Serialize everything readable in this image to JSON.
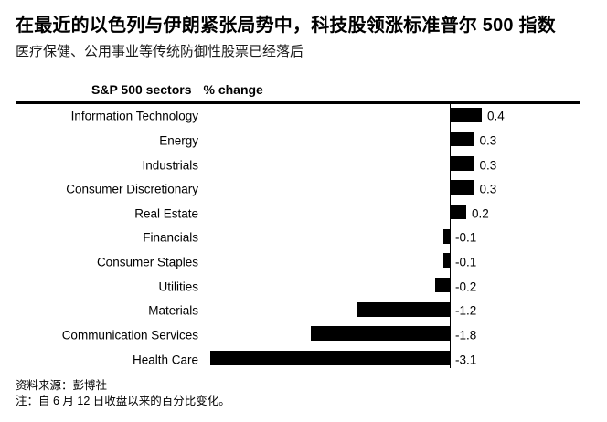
{
  "header": {
    "title": "在最近的以色列与伊朗紧张局势中，科技股领涨标准普尔 500 指数",
    "subtitle": "医疗保健、公用事业等传统防御性股票已经落后"
  },
  "chart_header": {
    "sectors_label": "S&P 500 sectors",
    "change_label": "% change"
  },
  "chart_data": {
    "type": "bar",
    "orientation": "horizontal",
    "title": "S&P 500 sectors % change",
    "xlabel": "% change",
    "ylabel": "S&P 500 sectors",
    "categories": [
      "Information Technology",
      "Energy",
      "Industrials",
      "Consumer Discretionary",
      "Real Estate",
      "Financials",
      "Consumer Staples",
      "Utilities",
      "Materials",
      "Communication Services",
      "Health Care"
    ],
    "values": [
      0.4,
      0.3,
      0.3,
      0.3,
      0.2,
      -0.1,
      -0.1,
      -0.2,
      -1.2,
      -1.8,
      -3.1
    ],
    "value_labels": [
      "0.4",
      "0.3",
      "0.3",
      "0.3",
      "0.2",
      "-0.1",
      "-0.1",
      "-0.2",
      "-1.2",
      "-1.8",
      "-3.1"
    ],
    "xlim": [
      -3.5,
      0.6
    ],
    "grid": false,
    "legend": false,
    "bar_color": "#000000"
  },
  "footer": {
    "source": "资料来源：彭博社",
    "note": "注：自 6 月 12 日收盘以来的百分比变化。"
  },
  "colors": {
    "bar": "#000000",
    "text": "#000000",
    "background": "#ffffff"
  }
}
